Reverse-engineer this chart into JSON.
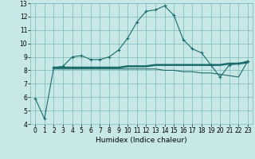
{
  "xlabel": "Humidex (Indice chaleur)",
  "background_color": "#c8e8e8",
  "grid_color": "#7ab8b8",
  "line_color": "#1a6b6b",
  "xlim": [
    -0.5,
    23.5
  ],
  "ylim": [
    4,
    13
  ],
  "xticks": [
    0,
    1,
    2,
    3,
    4,
    5,
    6,
    7,
    8,
    9,
    10,
    11,
    12,
    13,
    14,
    15,
    16,
    17,
    18,
    19,
    20,
    21,
    22,
    23
  ],
  "yticks": [
    4,
    5,
    6,
    7,
    8,
    9,
    10,
    11,
    12,
    13
  ],
  "humidex_line": {
    "x": [
      0,
      1,
      2,
      3,
      4,
      5,
      6,
      7,
      8,
      9,
      10,
      11,
      12,
      13,
      14,
      15,
      16,
      17,
      18,
      19,
      20,
      21,
      22,
      23
    ],
    "y": [
      5.9,
      4.4,
      8.2,
      8.3,
      9.0,
      9.1,
      8.8,
      8.8,
      9.0,
      9.5,
      10.4,
      11.6,
      12.4,
      12.5,
      12.8,
      12.1,
      10.3,
      9.6,
      9.3,
      8.4,
      7.5,
      8.4,
      8.5,
      8.7
    ]
  },
  "flat_line1": {
    "x": [
      2,
      3,
      4,
      5,
      6,
      7,
      8,
      9,
      10,
      11,
      12,
      13,
      14,
      15,
      16,
      17,
      18,
      19,
      20,
      21,
      22,
      23
    ],
    "y": [
      8.2,
      8.2,
      8.2,
      8.2,
      8.2,
      8.2,
      8.2,
      8.2,
      8.3,
      8.3,
      8.3,
      8.4,
      8.4,
      8.4,
      8.4,
      8.4,
      8.4,
      8.4,
      8.4,
      8.5,
      8.5,
      8.6
    ]
  },
  "flat_line2": {
    "x": [
      2,
      3,
      4,
      5,
      6,
      7,
      8,
      9,
      10,
      11,
      12,
      13,
      14,
      15,
      16,
      17,
      18,
      19,
      20,
      21,
      22,
      23
    ],
    "y": [
      8.1,
      8.1,
      8.1,
      8.1,
      8.1,
      8.1,
      8.1,
      8.1,
      8.1,
      8.1,
      8.1,
      8.1,
      8.0,
      8.0,
      7.9,
      7.9,
      7.8,
      7.8,
      7.7,
      7.6,
      7.5,
      8.7
    ]
  }
}
